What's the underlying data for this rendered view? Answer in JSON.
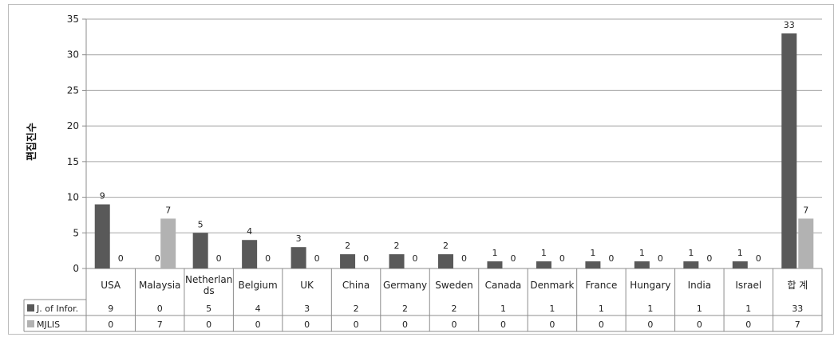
{
  "chart_data": {
    "type": "bar",
    "title": "",
    "xlabel": "",
    "ylabel": "편집진수",
    "ylim": [
      0,
      35
    ],
    "yticks": [
      0,
      5,
      10,
      15,
      20,
      25,
      30,
      35
    ],
    "grid": true,
    "legend": "data-table",
    "categories": [
      "USA",
      "Malaysia",
      "Netherlands",
      "Belgium",
      "UK",
      "China",
      "Germany",
      "Sweden",
      "Canada",
      "Denmark",
      "France",
      "Hungary",
      "India",
      "Israel",
      "합 계"
    ],
    "series": [
      {
        "name": "J. of Infor.",
        "color": "#595959",
        "values": [
          9,
          0,
          5,
          4,
          3,
          2,
          2,
          2,
          1,
          1,
          1,
          1,
          1,
          1,
          33
        ]
      },
      {
        "name": "MJLIS",
        "color": "#b2b2b2",
        "values": [
          0,
          7,
          0,
          0,
          0,
          0,
          0,
          0,
          0,
          0,
          0,
          0,
          0,
          0,
          7
        ]
      }
    ]
  }
}
